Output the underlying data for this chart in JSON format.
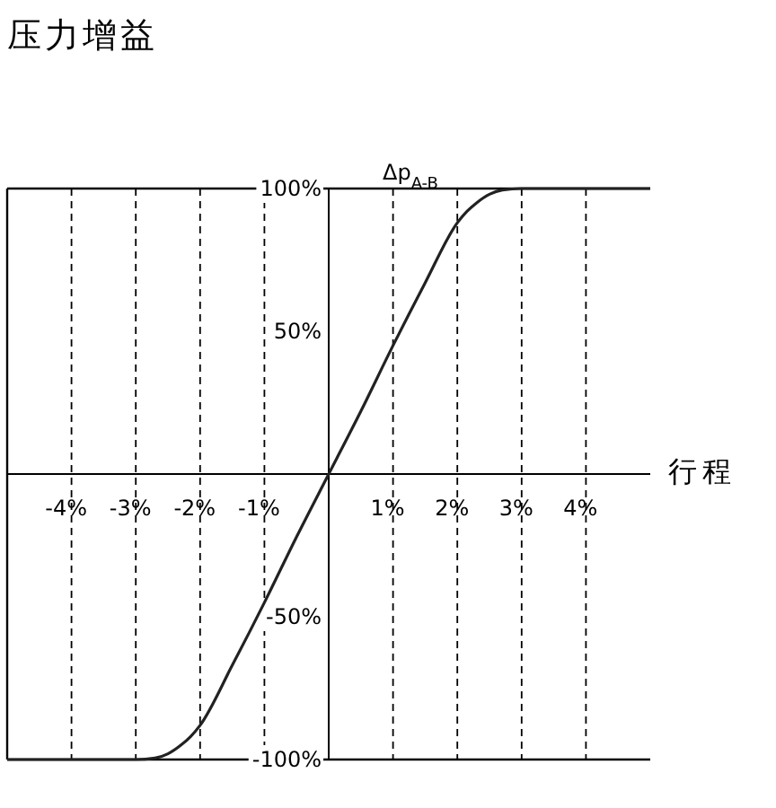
{
  "chart_data": {
    "type": "line",
    "title": "压力增益",
    "xlabel": "行程",
    "ylabel": "Δp$_{A-B}$",
    "x": [
      -5,
      -4,
      -3,
      -2.7,
      -2.5,
      -2.3,
      -2.15,
      -2,
      -1.5,
      -1,
      -0.5,
      0,
      0.5,
      1,
      1.5,
      2,
      2.15,
      2.3,
      2.5,
      2.7,
      3,
      4,
      5
    ],
    "series": [
      {
        "color": "#222222",
        "values": [
          -100,
          -100,
          -100,
          -99.5,
          -98,
          -95,
          -92,
          -88,
          -67,
          -45,
          -22,
          0,
          22,
          45,
          67,
          88,
          92,
          95,
          98,
          99.5,
          100,
          100,
          100
        ]
      }
    ],
    "xlim": [
      -5,
      5
    ],
    "ylim": [
      -100,
      100
    ],
    "xticks": [
      {
        "value": -4,
        "label": "-4%"
      },
      {
        "value": -3,
        "label": "-3%"
      },
      {
        "value": -2,
        "label": "-2%"
      },
      {
        "value": -1,
        "label": "-1%"
      },
      {
        "value": 1,
        "label": "1%"
      },
      {
        "value": 2,
        "label": "2%"
      },
      {
        "value": 3,
        "label": "3%"
      },
      {
        "value": 4,
        "label": "4%"
      }
    ],
    "yticks": [
      {
        "value": -100,
        "label": "-100%"
      },
      {
        "value": -50,
        "label": "-50%"
      },
      {
        "value": 50,
        "label": "50%"
      },
      {
        "value": 100,
        "label": "100%"
      }
    ],
    "grid": "x",
    "marker": "none",
    "line_style": "solid"
  }
}
